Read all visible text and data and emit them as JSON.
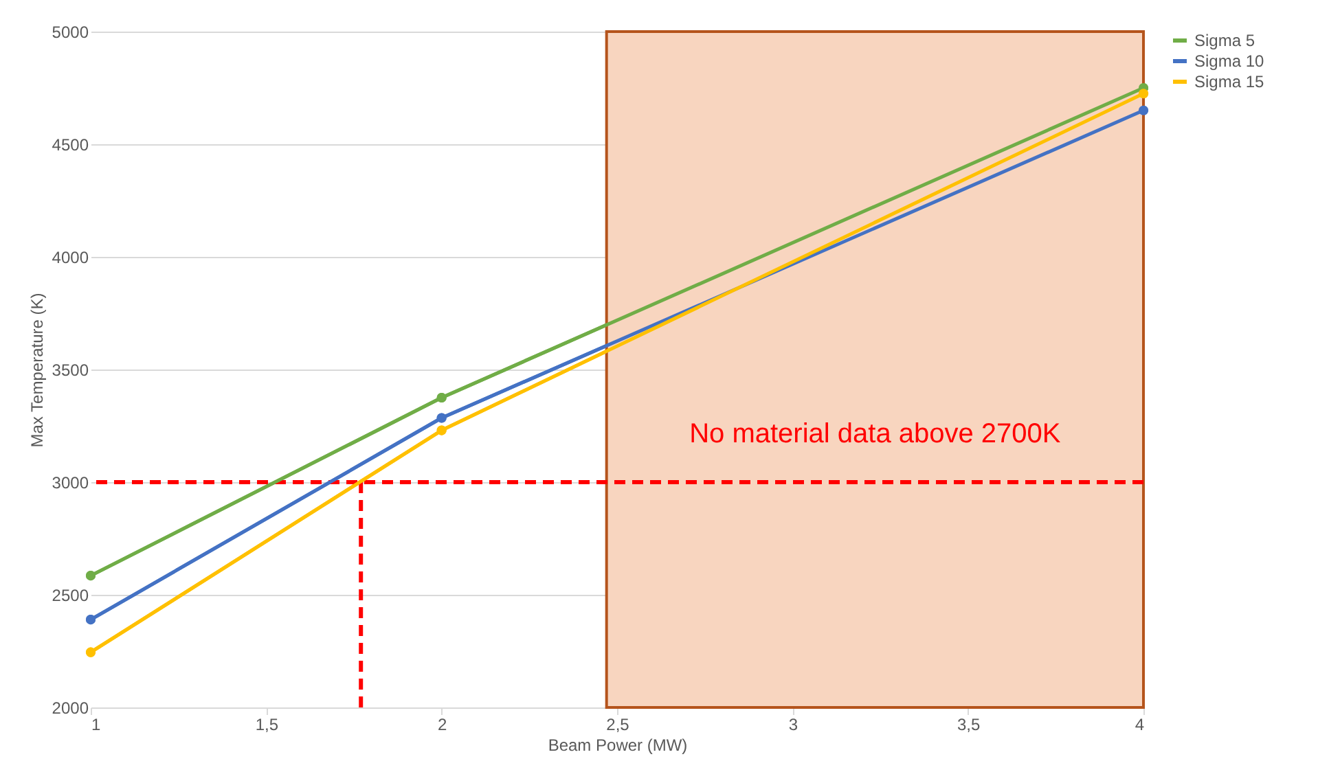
{
  "chart_data": {
    "type": "line",
    "xlabel": "Beam Power (MW)",
    "ylabel": "Max Temperature (K)",
    "x": [
      1,
      2,
      4
    ],
    "series": [
      {
        "name": "Sigma 5",
        "color": "#70ad47",
        "values": [
          2585,
          3375,
          4750
        ]
      },
      {
        "name": "Sigma 10",
        "color": "#4472c4",
        "values": [
          2390,
          3285,
          4650
        ]
      },
      {
        "name": "Sigma 15",
        "color": "#ffc000",
        "values": [
          2245,
          3230,
          4725
        ]
      }
    ],
    "xlim": [
      1,
      4
    ],
    "xticks": [
      1,
      {
        "value": 1.5,
        "label": "1,5"
      },
      2,
      {
        "value": 2.5,
        "label": "2,5"
      },
      3,
      {
        "value": 3.5,
        "label": "3,5"
      },
      4
    ],
    "ylim": [
      2000,
      5000
    ],
    "yticks": [
      2000,
      2500,
      3000,
      3500,
      4000,
      4500,
      5000
    ],
    "grid": "y",
    "legend": "right",
    "marker": "circle",
    "line_style": "solid",
    "ref_lines": [
      {
        "axis": "y",
        "value": 3000,
        "color": "#ff0000",
        "line_style": "dashed"
      },
      {
        "axis": "x",
        "value": 1.77,
        "color": "#ff0000",
        "line_style": "dashed"
      }
    ],
    "bands": [
      {
        "axis": "x",
        "from": 2.47,
        "to": 4,
        "label": "No material data above 2700K",
        "color": "#f8d5bf"
      }
    ]
  }
}
